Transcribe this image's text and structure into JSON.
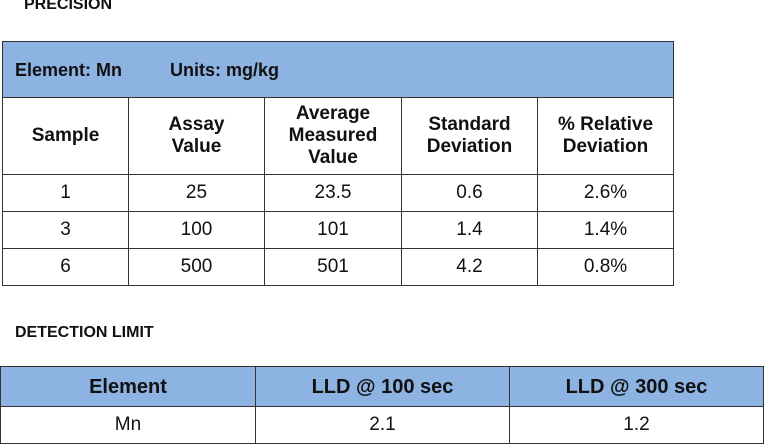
{
  "precision": {
    "title": "PRECISION",
    "element_label": "Element: Mn",
    "units_label": "Units:  mg/kg",
    "columns": [
      "Sample",
      "Assay\nValue",
      "Average\nMeasured\nValue",
      "Standard\nDeviation",
      "% Relative\nDeviation"
    ],
    "rows": [
      [
        "1",
        "25",
        "23.5",
        "0.6",
        "2.6%"
      ],
      [
        "3",
        "100",
        "101",
        "1.4",
        "1.4%"
      ],
      [
        "6",
        "500",
        "501",
        "4.2",
        "0.8%"
      ]
    ]
  },
  "detection_limit": {
    "title": "DETECTION LIMIT",
    "columns": [
      "Element",
      "LLD @ 100 sec",
      "LLD @ 300 sec"
    ],
    "rows": [
      [
        "Mn",
        "2.1",
        "1.2"
      ]
    ]
  }
}
